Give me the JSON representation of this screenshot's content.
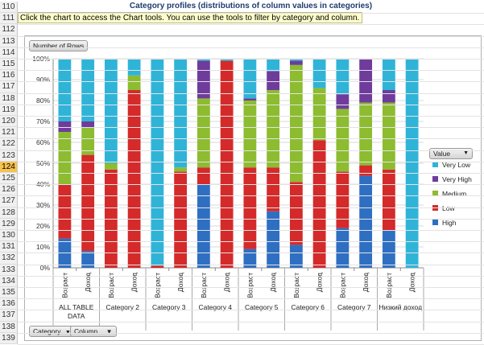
{
  "sheet": {
    "title": "Category profiles (distributions of column values in categories)",
    "note": "Click the chart to access the Chart tools. You can use the tools to filter by category and column.",
    "row_numbers": [
      "110",
      "111",
      "112",
      "113",
      "114",
      "115",
      "116",
      "117",
      "118",
      "119",
      "120",
      "121",
      "122",
      "123",
      "124",
      "125",
      "126",
      "127",
      "128",
      "129",
      "130",
      "131",
      "132",
      "133",
      "134",
      "135",
      "136",
      "137",
      "138",
      "139"
    ],
    "selected_row": "124"
  },
  "chart_ui": {
    "number_of_rows_button": "Number of Rows",
    "value_button": "Value",
    "category_button": "Category",
    "column_button": "Column"
  },
  "colors": {
    "Very Low": "#2fb4d8",
    "Very High": "#6f3c9c",
    "Medium": "#8dbc30",
    "Low": "#d42a2a",
    "High": "#2f6fc2"
  },
  "chart_data": {
    "type": "bar",
    "stacked": "percent",
    "ylim": [
      0,
      100
    ],
    "yticks": [
      "0%",
      "10%",
      "20%",
      "30%",
      "40%",
      "50%",
      "60%",
      "70%",
      "80%",
      "90%",
      "100%"
    ],
    "legend_title": "Value",
    "legend_position": "right",
    "legend": [
      "Very Low",
      "Very High",
      "Medium",
      "Low",
      "High"
    ],
    "categories": [
      {
        "label": "Возраст",
        "group": "ALL TABLE DATA"
      },
      {
        "label": "Доход",
        "group": "ALL TABLE DATA"
      },
      {
        "label": "Возраст",
        "group": "Category 2"
      },
      {
        "label": "Доход",
        "group": "Category 2"
      },
      {
        "label": "Возраст",
        "group": "Category 3"
      },
      {
        "label": "Доход",
        "group": "Category 3"
      },
      {
        "label": "Возраст",
        "group": "Category 4"
      },
      {
        "label": "Доход",
        "group": "Category 4"
      },
      {
        "label": "Возраст",
        "group": "Category 5"
      },
      {
        "label": "Доход",
        "group": "Category 5"
      },
      {
        "label": "Возраст",
        "group": "Category 6"
      },
      {
        "label": "Доход",
        "group": "Category 6"
      },
      {
        "label": "Возраст",
        "group": "Category 7"
      },
      {
        "label": "Доход",
        "group": "Category 7"
      },
      {
        "label": "Возраст",
        "group": "Низкий доход"
      },
      {
        "label": "Доход",
        "group": "Низкий доход"
      }
    ],
    "groups": [
      "ALL TABLE DATA",
      "Category 2",
      "Category 3",
      "Category 4",
      "Category 5",
      "Category 6",
      "Category 7",
      "Низкий доход"
    ],
    "series": [
      {
        "name": "High",
        "values": [
          14,
          8,
          0,
          0,
          0,
          0,
          40,
          0,
          9,
          27,
          11,
          0,
          19,
          44,
          18,
          0
        ]
      },
      {
        "name": "Low",
        "values": [
          26,
          46,
          47,
          85,
          1,
          46,
          8,
          99,
          39,
          21,
          30,
          61,
          27,
          5,
          29,
          0
        ]
      },
      {
        "name": "Medium",
        "values": [
          25,
          13,
          3,
          7,
          0,
          2,
          33,
          0,
          32,
          37,
          56,
          25,
          30,
          30,
          32,
          0
        ]
      },
      {
        "name": "Very High",
        "values": [
          5,
          3,
          0,
          0,
          0,
          0,
          18,
          0,
          1,
          9,
          2,
          0,
          7,
          21,
          6,
          0
        ]
      },
      {
        "name": "Very Low",
        "values": [
          30,
          30,
          50,
          8,
          99,
          52,
          1,
          1,
          19,
          6,
          1,
          14,
          17,
          0,
          15,
          100
        ]
      }
    ]
  }
}
